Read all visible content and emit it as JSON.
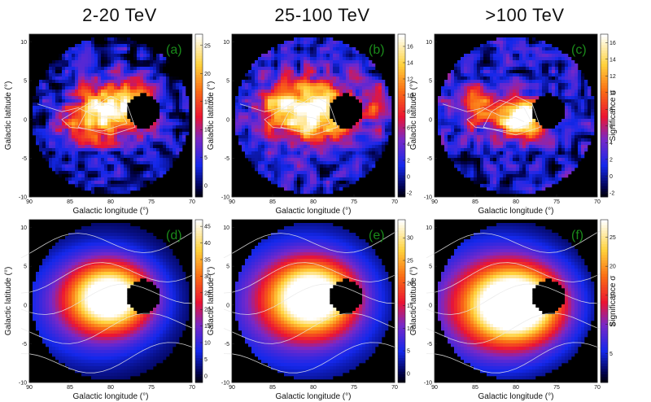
{
  "column_titles": [
    "2-20 TeV",
    "25-100 TeV",
    ">100 TeV"
  ],
  "chart_data": [
    {
      "type": "heatmap",
      "panel_label": "(a)",
      "xlabel": "Galactic longitude (°)",
      "ylabel": "Galactic latitude (°)",
      "xlim": [
        90,
        70
      ],
      "ylim": [
        -10,
        11
      ],
      "xticks": [
        90,
        85,
        80,
        75,
        70
      ],
      "yticks": [
        -10,
        -5,
        0,
        5,
        10
      ],
      "colorbar": {
        "ticks": [
          0,
          5,
          10,
          15,
          20,
          25
        ],
        "range": [
          -2,
          27
        ],
        "label": ""
      },
      "blobs": [
        {
          "l": 80,
          "b": 1,
          "sigma_l": 3.2,
          "sigma_b": 2.6,
          "peak": 26
        },
        {
          "l": 84,
          "b": -1,
          "sigma_l": 1.8,
          "sigma_b": 1.6,
          "peak": 8
        },
        {
          "l": 77,
          "b": 2,
          "sigma_l": 1.5,
          "sigma_b": 1.5,
          "peak": 7
        }
      ],
      "mask": {
        "l": 76,
        "b": 1.1,
        "radius": 2.1
      },
      "contours": "grain"
    },
    {
      "type": "heatmap",
      "panel_label": "(b)",
      "xlabel": "Galactic longitude (°)",
      "ylabel": "Galactic latitude (°)",
      "xlim": [
        90,
        70
      ],
      "ylim": [
        -10,
        11
      ],
      "xticks": [
        90,
        85,
        80,
        75,
        70
      ],
      "yticks": [
        -10,
        -5,
        0,
        5,
        10
      ],
      "colorbar": {
        "ticks": [
          -2,
          0,
          2,
          4,
          6,
          8,
          10,
          12,
          14,
          16
        ],
        "range": [
          -2.5,
          17.5
        ],
        "label": ""
      },
      "blobs": [
        {
          "l": 80,
          "b": 1,
          "sigma_l": 3.5,
          "sigma_b": 2.8,
          "peak": 17
        },
        {
          "l": 84,
          "b": 2,
          "sigma_l": 1.6,
          "sigma_b": 1.6,
          "peak": 8
        },
        {
          "l": 72,
          "b": 1.5,
          "sigma_l": 1.0,
          "sigma_b": 2.2,
          "peak": 6
        }
      ],
      "mask": {
        "l": 76,
        "b": 1.1,
        "radius": 2.1
      },
      "contours": "grain"
    },
    {
      "type": "heatmap",
      "panel_label": "(c)",
      "xlabel": "Galactic longitude (°)",
      "ylabel": "Galactic latitude (°)",
      "xlim": [
        90,
        70
      ],
      "ylim": [
        -10,
        11
      ],
      "xticks": [
        90,
        85,
        80,
        75,
        70
      ],
      "yticks": [
        -10,
        -5,
        0,
        5,
        10
      ],
      "colorbar": {
        "ticks": [
          -2,
          0,
          2,
          4,
          6,
          8,
          10,
          12,
          14,
          16
        ],
        "range": [
          -2.5,
          17
        ],
        "label": "Significance σ"
      },
      "blobs": [
        {
          "l": 79,
          "b": 0,
          "sigma_l": 1.6,
          "sigma_b": 1.5,
          "peak": 16
        },
        {
          "l": 82,
          "b": 1,
          "sigma_l": 2.8,
          "sigma_b": 2.2,
          "peak": 8
        },
        {
          "l": 86,
          "b": 2,
          "sigma_l": 1.5,
          "sigma_b": 1.5,
          "peak": 5
        }
      ],
      "mask": {
        "l": 76,
        "b": 1.1,
        "radius": 2.1
      },
      "contours": "grain"
    },
    {
      "type": "heatmap",
      "panel_label": "(d)",
      "xlabel": "Galactic longitude (°)",
      "ylabel": "Galactic latitude (°)",
      "xlim": [
        90,
        70
      ],
      "ylim": [
        -10,
        11
      ],
      "xticks": [
        90,
        85,
        80,
        75,
        70
      ],
      "yticks": [
        -10,
        -5,
        0,
        5,
        10
      ],
      "colorbar": {
        "ticks": [
          0,
          5,
          10,
          15,
          20,
          25,
          30,
          35,
          40,
          45
        ],
        "range": [
          -2,
          47
        ],
        "label": ""
      },
      "blobs": [
        {
          "l": 80,
          "b": 1,
          "sigma_l": 3.4,
          "sigma_b": 3.0,
          "peak": 45
        },
        {
          "l": 83,
          "b": 0,
          "sigma_l": 6.0,
          "sigma_b": 5.0,
          "peak": 12
        }
      ],
      "mask": {
        "l": 76,
        "b": 1.1,
        "radius": 2.1
      },
      "contours": "smooth"
    },
    {
      "type": "heatmap",
      "panel_label": "(e)",
      "xlabel": "Galactic longitude (°)",
      "ylabel": "Galactic latitude (°)",
      "xlim": [
        90,
        70
      ],
      "ylim": [
        -10,
        11
      ],
      "xticks": [
        90,
        85,
        80,
        75,
        70
      ],
      "yticks": [
        -10,
        -5,
        0,
        5,
        10
      ],
      "colorbar": {
        "ticks": [
          0,
          5,
          10,
          15,
          20,
          25,
          30
        ],
        "range": [
          -2,
          34
        ],
        "label": ""
      },
      "blobs": [
        {
          "l": 80,
          "b": 1,
          "sigma_l": 3.6,
          "sigma_b": 3.2,
          "peak": 33
        },
        {
          "l": 83,
          "b": 0,
          "sigma_l": 6.5,
          "sigma_b": 5.5,
          "peak": 10
        }
      ],
      "mask": {
        "l": 76,
        "b": 1.1,
        "radius": 2.1
      },
      "contours": "smooth"
    },
    {
      "type": "heatmap",
      "panel_label": "(f)",
      "xlabel": "Galactic longitude (°)",
      "ylabel": "Galactic latitude (°)",
      "xlim": [
        90,
        70
      ],
      "ylim": [
        -10,
        11
      ],
      "xticks": [
        90,
        85,
        80,
        75,
        70
      ],
      "yticks": [
        -10,
        -5,
        0,
        5,
        10
      ],
      "colorbar": {
        "ticks": [
          5,
          10,
          15,
          20,
          25
        ],
        "range": [
          0,
          28
        ],
        "label": "Significance σ"
      },
      "blobs": [
        {
          "l": 80,
          "b": 0,
          "sigma_l": 3.8,
          "sigma_b": 3.2,
          "peak": 27
        },
        {
          "l": 83,
          "b": 0,
          "sigma_l": 7.0,
          "sigma_b": 6.0,
          "peak": 12
        }
      ],
      "mask": {
        "l": 76,
        "b": 1.1,
        "radius": 2.1
      },
      "contours": "smooth"
    }
  ]
}
